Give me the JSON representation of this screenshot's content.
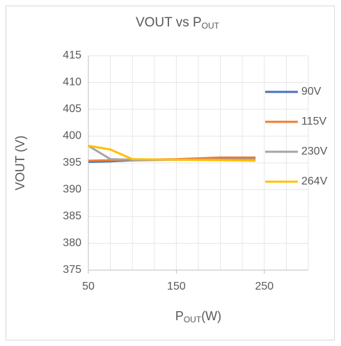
{
  "chart_data": {
    "type": "line",
    "title": [
      "VOUT vs P",
      "OUT"
    ],
    "ylabel": "VOUT (V)",
    "xlabel": [
      "P",
      "OUT",
      "(W)"
    ],
    "x": [
      50,
      75,
      100,
      150,
      200,
      240
    ],
    "series": [
      {
        "name": "90V",
        "color": "#4472c4",
        "values": [
          395.2,
          395.3,
          395.5,
          395.6,
          395.8,
          395.9
        ]
      },
      {
        "name": "115V",
        "color": "#ed7d31",
        "values": [
          395.4,
          395.5,
          395.6,
          395.7,
          396.0,
          396.0
        ]
      },
      {
        "name": "230V",
        "color": "#a5a5a5",
        "values": [
          398.2,
          395.7,
          395.6,
          395.6,
          395.6,
          395.6
        ]
      },
      {
        "name": "264V",
        "color": "#ffc000",
        "values": [
          398.2,
          397.5,
          395.7,
          395.6,
          395.5,
          395.4
        ]
      }
    ],
    "xlim": [
      50,
      300
    ],
    "xticks": [
      50,
      150,
      250
    ],
    "xgrid": [
      50,
      75,
      100,
      125,
      150,
      175,
      200,
      225,
      250,
      275,
      300
    ],
    "ylim": [
      375,
      415
    ],
    "yticks": [
      375,
      380,
      385,
      390,
      395,
      400,
      405,
      410,
      415
    ],
    "grid": true,
    "legend": "right"
  }
}
